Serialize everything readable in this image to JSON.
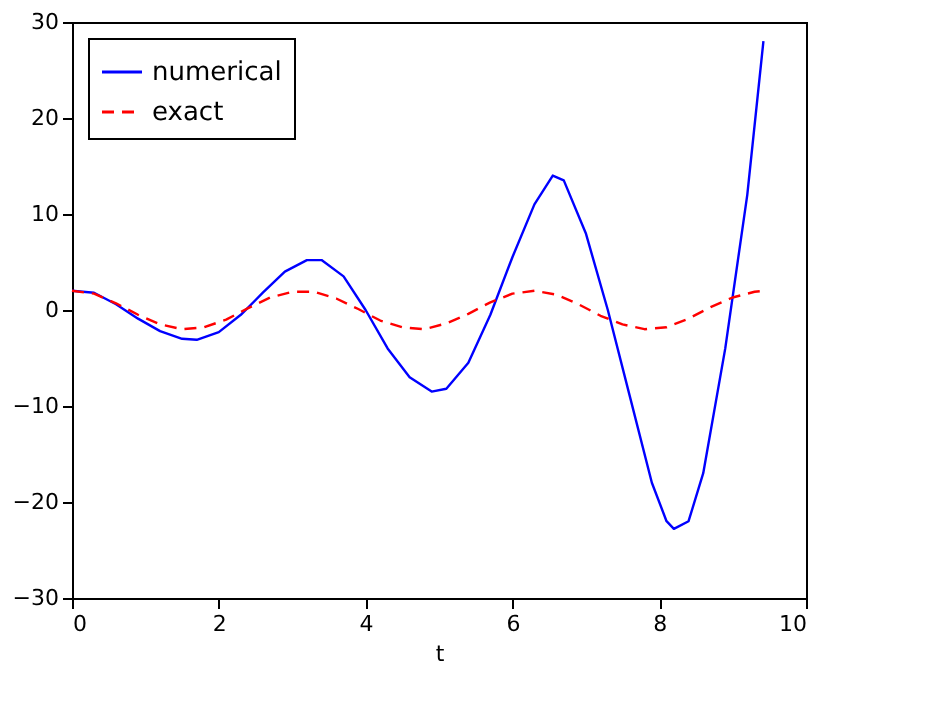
{
  "chart_data": {
    "type": "line",
    "xlabel": "t",
    "xlim": [
      0,
      10
    ],
    "xticks": [
      0,
      2,
      4,
      6,
      8,
      10
    ],
    "ylim": [
      -30,
      30
    ],
    "yticks": [
      -30,
      -20,
      -10,
      0,
      10,
      20,
      30
    ],
    "grid": false,
    "legend": "top left",
    "marker": "none",
    "series": [
      {
        "name": "numerical",
        "color": "#0000ff",
        "line_style": "solid",
        "x": [
          0,
          0.3,
          0.6,
          0.9,
          1.2,
          1.5,
          1.7,
          2.0,
          2.3,
          2.6,
          2.9,
          3.2,
          3.4,
          3.7,
          4.0,
          4.3,
          4.6,
          4.9,
          5.1,
          5.4,
          5.7,
          6.0,
          6.3,
          6.55,
          6.7,
          7.0,
          7.3,
          7.6,
          7.9,
          8.1,
          8.2,
          8.4,
          8.6,
          8.9,
          9.2,
          9.42
        ],
        "values": [
          2,
          1.8,
          0.6,
          -0.9,
          -2.2,
          -3.0,
          -3.1,
          -2.3,
          -0.5,
          1.8,
          4.0,
          5.2,
          5.2,
          3.5,
          0,
          -4,
          -7,
          -8.5,
          -8.2,
          -5.5,
          -0.5,
          5.5,
          11,
          14,
          13.5,
          8,
          0,
          -9,
          -18,
          -22,
          -22.8,
          -22,
          -17,
          -4,
          12,
          28
        ]
      },
      {
        "name": "exact",
        "color": "#ff0000",
        "line_style": "dashed",
        "x": [
          0,
          0.3,
          0.6,
          0.9,
          1.2,
          1.5,
          1.8,
          2.1,
          2.4,
          2.7,
          3.0,
          3.3,
          3.6,
          3.9,
          4.2,
          4.5,
          4.8,
          5.1,
          5.4,
          5.7,
          6.0,
          6.3,
          6.6,
          6.9,
          7.2,
          7.5,
          7.8,
          8.1,
          8.4,
          8.7,
          9.0,
          9.3,
          9.42
        ],
        "values": [
          2,
          1.7,
          0.7,
          -0.5,
          -1.5,
          -2.0,
          -1.8,
          -1.0,
          0.2,
          1.3,
          1.9,
          1.9,
          1.2,
          0.1,
          -1.1,
          -1.8,
          -2.0,
          -1.4,
          -0.4,
          0.8,
          1.7,
          2.0,
          1.6,
          0.6,
          -0.6,
          -1.5,
          -2.0,
          -1.8,
          -0.9,
          0.3,
          1.3,
          1.9,
          2.0
        ]
      }
    ]
  }
}
